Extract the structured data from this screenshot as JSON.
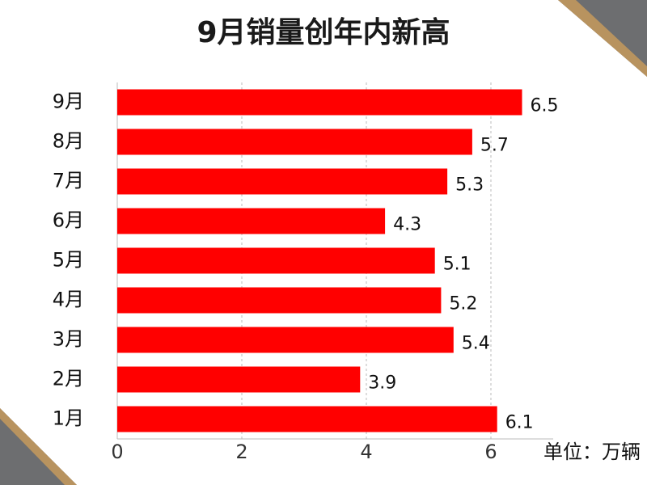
{
  "chart_data": {
    "type": "bar",
    "orientation": "horizontal",
    "title": "9月销量创年内新高",
    "categories": [
      "9月",
      "8月",
      "7月",
      "6月",
      "5月",
      "4月",
      "3月",
      "2月",
      "1月"
    ],
    "values": [
      6.5,
      5.7,
      5.3,
      4.3,
      5.1,
      5.2,
      5.4,
      3.9,
      6.1
    ],
    "color": "#ff0000",
    "xlim": [
      0,
      7
    ],
    "xticks": [
      0,
      2,
      4,
      6
    ],
    "grid": true,
    "unit_label": "单位：万辆"
  }
}
